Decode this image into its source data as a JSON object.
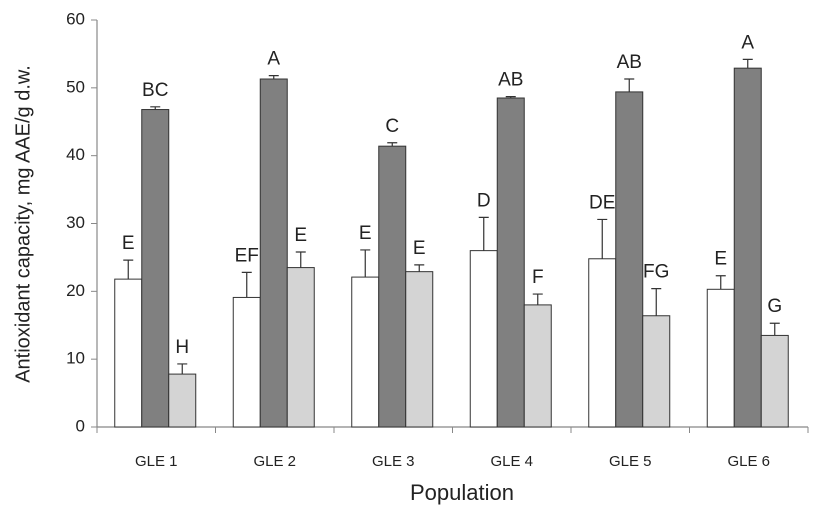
{
  "chart_data": {
    "type": "bar",
    "x_label": "Population",
    "y_label": "Antioxidant capacity, mg AAE/g d.w.",
    "categories": [
      "GLE 1",
      "GLE 2",
      "GLE 3",
      "GLE 4",
      "GLE 5",
      "GLE 6"
    ],
    "series": [
      {
        "color": "#ffffff",
        "values": [
          21.8,
          19.1,
          22.1,
          26.0,
          24.8,
          20.3
        ],
        "errors": [
          2.8,
          3.7,
          4.0,
          4.9,
          5.8,
          2.0
        ],
        "labels": [
          "E",
          "EF",
          "E",
          "D",
          "DE",
          "E"
        ]
      },
      {
        "color": "#808080",
        "values": [
          46.8,
          51.3,
          41.4,
          48.5,
          49.4,
          52.9
        ],
        "errors": [
          0.4,
          0.5,
          0.5,
          0.2,
          1.9,
          1.3
        ],
        "labels": [
          "BC",
          "A",
          "C",
          "AB",
          "AB",
          "A"
        ]
      },
      {
        "color": "#d4d4d4",
        "values": [
          7.8,
          23.5,
          22.9,
          18.0,
          16.4,
          13.5
        ],
        "errors": [
          1.5,
          2.3,
          1.0,
          1.6,
          4.0,
          1.8
        ],
        "labels": [
          "H",
          "E",
          "E",
          "F",
          "FG",
          "G"
        ]
      }
    ],
    "ylim": [
      0,
      60
    ],
    "yticks": [
      0,
      10,
      20,
      30,
      40,
      50,
      60
    ],
    "grid": false
  }
}
